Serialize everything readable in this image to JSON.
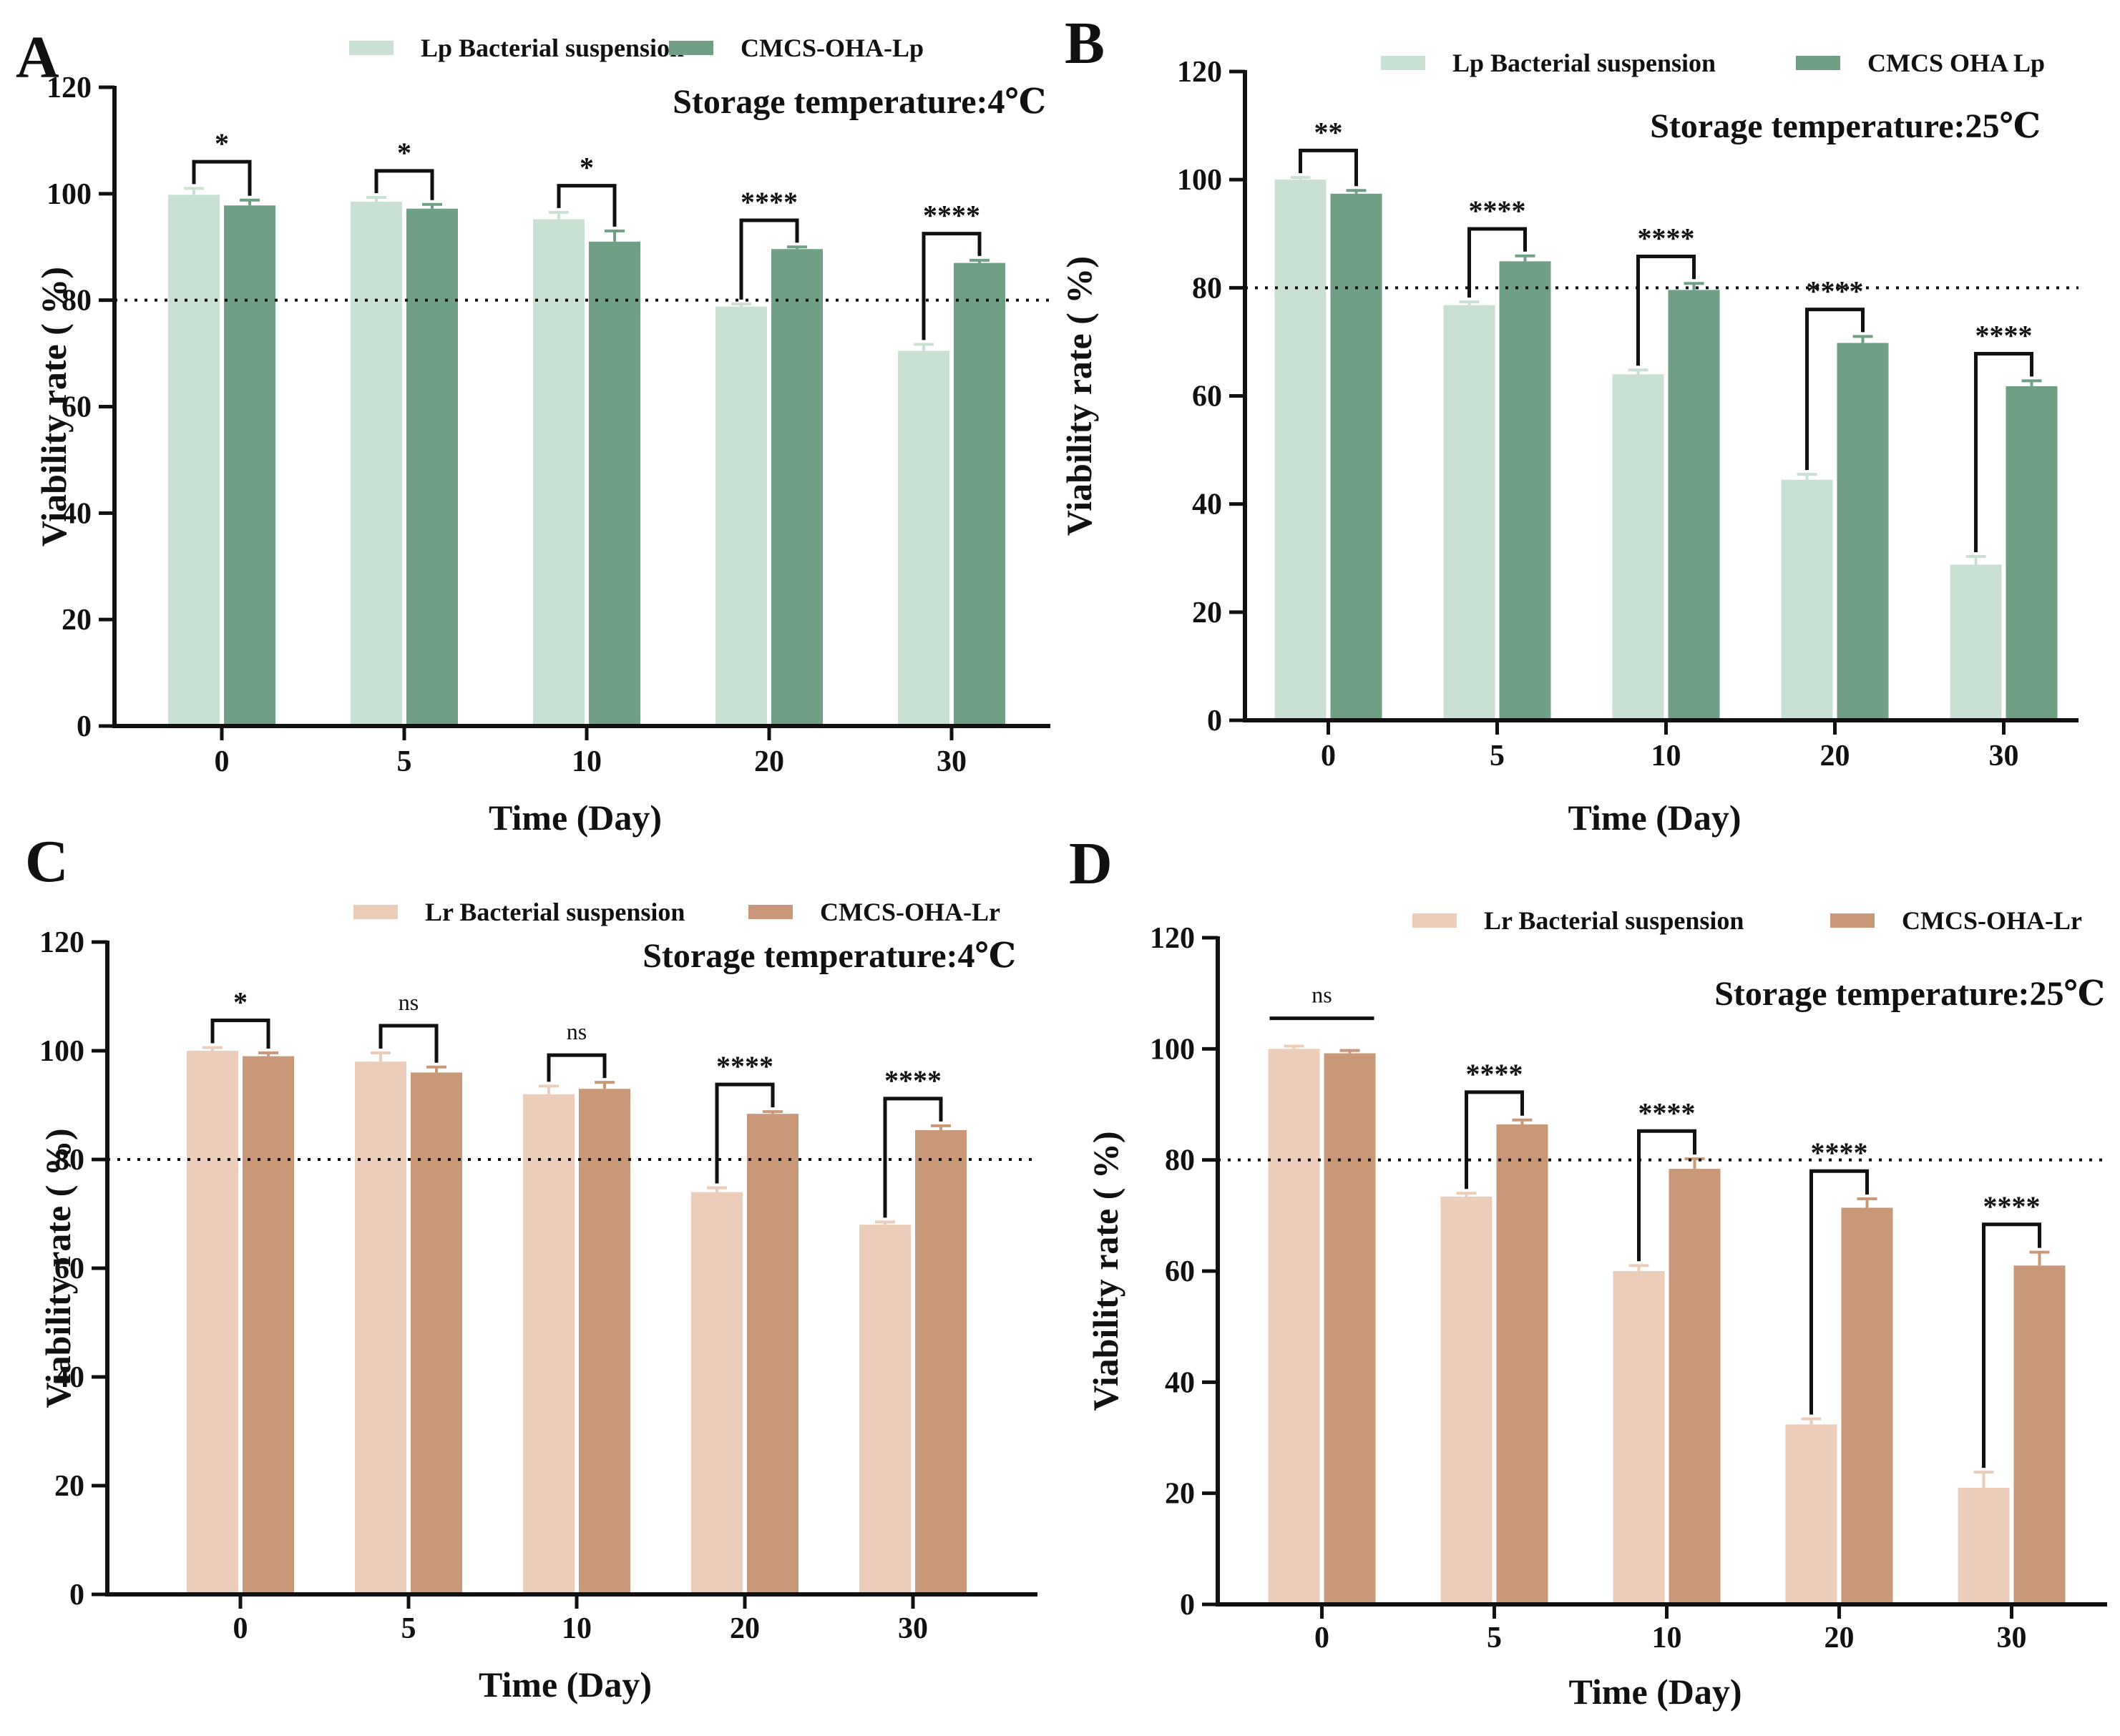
{
  "figure": {
    "colors": {
      "lp_suspension": "#c9e0d2",
      "lp_cmcs": "#6f9f85",
      "lr_suspension": "#ebcdb9",
      "lr_cmcs": "#c99878",
      "axis": "#111111",
      "text": "#111111"
    }
  },
  "chart_data": [
    {
      "panel": "A",
      "type": "bar",
      "categories": [
        "0",
        "5",
        "10",
        "20",
        "30"
      ],
      "series": [
        {
          "name": "Lp Bacterial suspension",
          "values": [
            99.8,
            98.5,
            95.2,
            78.8,
            70.5
          ],
          "errors": [
            1.2,
            0.8,
            1.3,
            0.5,
            1.2
          ]
        },
        {
          "name": "CMCS-OHA-Lp",
          "values": [
            97.8,
            97.2,
            91.0,
            89.6,
            87.0
          ],
          "errors": [
            1.0,
            0.8,
            2.0,
            0.4,
            0.5
          ]
        }
      ],
      "significance": [
        "*",
        "*",
        "*",
        "****",
        "****"
      ],
      "annotation": "Storage temperature:4℃",
      "reference_line": 80,
      "xlabel": "Time (Day)",
      "ylabel": "Viability rate ( %)",
      "ylim": [
        0,
        120
      ],
      "yticks": [
        0,
        20,
        40,
        60,
        80,
        100,
        120
      ],
      "legend": "top"
    },
    {
      "panel": "B",
      "type": "bar",
      "categories": [
        "0",
        "5",
        "10",
        "20",
        "30"
      ],
      "series": [
        {
          "name": "Lp Bacterial suspension",
          "values": [
            100.0,
            76.8,
            64.0,
            44.5,
            28.8
          ],
          "errors": [
            0.4,
            0.6,
            0.8,
            1.0,
            1.5
          ]
        },
        {
          "name": "CMCS OHA Lp",
          "values": [
            97.4,
            84.9,
            79.6,
            69.8,
            61.8
          ],
          "errors": [
            0.6,
            1.0,
            1.2,
            1.2,
            1.0
          ]
        }
      ],
      "significance": [
        "**",
        "****",
        "****",
        "****",
        "****"
      ],
      "annotation": "Storage temperature:25℃",
      "reference_line": 80,
      "xlabel": "Time (Day)",
      "ylabel": "Viability rate ( %)",
      "ylim": [
        0,
        120
      ],
      "yticks": [
        0,
        20,
        40,
        60,
        80,
        100,
        120
      ],
      "legend": "top"
    },
    {
      "panel": "C",
      "type": "bar",
      "categories": [
        "0",
        "5",
        "10",
        "20",
        "30"
      ],
      "series": [
        {
          "name": "Lr Bacterial suspension",
          "values": [
            100.0,
            98.0,
            92.0,
            74.0,
            68.0
          ],
          "errors": [
            0.6,
            1.6,
            1.5,
            0.8,
            0.5
          ]
        },
        {
          "name": "CMCS-OHA-Lr",
          "values": [
            99.0,
            96.0,
            93.0,
            88.4,
            85.4
          ],
          "errors": [
            0.6,
            1.0,
            1.2,
            0.4,
            0.8
          ]
        }
      ],
      "significance": [
        "*",
        "ns",
        "ns",
        "****",
        "****"
      ],
      "annotation": "Storage temperature:4℃",
      "reference_line": 80,
      "xlabel": "Time (Day)",
      "ylabel": "Viability rate ( %)",
      "ylim": [
        0,
        120
      ],
      "yticks": [
        0,
        20,
        40,
        60,
        80,
        100,
        120
      ],
      "legend": "top"
    },
    {
      "panel": "D",
      "type": "bar",
      "categories": [
        "0",
        "5",
        "10",
        "20",
        "30"
      ],
      "series": [
        {
          "name": "Lr Bacterial suspension",
          "values": [
            100.0,
            73.4,
            60.0,
            32.4,
            21.0
          ],
          "errors": [
            0.5,
            0.6,
            1.0,
            1.0,
            2.8
          ]
        },
        {
          "name": "CMCS-OHA-Lr",
          "values": [
            99.2,
            86.4,
            78.4,
            71.4,
            61.0
          ],
          "errors": [
            0.5,
            0.8,
            1.8,
            1.6,
            2.4
          ]
        }
      ],
      "significance": [
        "ns",
        "****",
        "****",
        "****",
        "****"
      ],
      "annotation": "Storage temperature:25℃",
      "reference_line": 80,
      "xlabel": "Time (Day)",
      "ylabel": "Viability rate ( %)",
      "ylim": [
        0,
        120
      ],
      "yticks": [
        0,
        20,
        40,
        60,
        80,
        100,
        120
      ],
      "legend": "top"
    }
  ]
}
